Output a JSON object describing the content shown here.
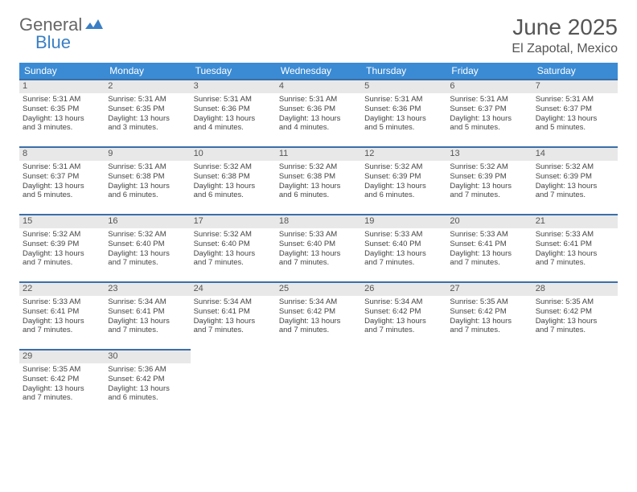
{
  "logo": {
    "general": "General",
    "blue": "Blue"
  },
  "title": {
    "month": "June 2025",
    "location": "El Zapotal, Mexico"
  },
  "day_headers": [
    "Sunday",
    "Monday",
    "Tuesday",
    "Wednesday",
    "Thursday",
    "Friday",
    "Saturday"
  ],
  "colors": {
    "header_bg": "#3b8bd4",
    "border": "#3b6fa8",
    "daynum_bg": "#e8e8e8",
    "text": "#444444"
  },
  "weeks": [
    [
      {
        "n": "1",
        "sr": "Sunrise: 5:31 AM",
        "ss": "Sunset: 6:35 PM",
        "d1": "Daylight: 13 hours",
        "d2": "and 3 minutes."
      },
      {
        "n": "2",
        "sr": "Sunrise: 5:31 AM",
        "ss": "Sunset: 6:35 PM",
        "d1": "Daylight: 13 hours",
        "d2": "and 3 minutes."
      },
      {
        "n": "3",
        "sr": "Sunrise: 5:31 AM",
        "ss": "Sunset: 6:36 PM",
        "d1": "Daylight: 13 hours",
        "d2": "and 4 minutes."
      },
      {
        "n": "4",
        "sr": "Sunrise: 5:31 AM",
        "ss": "Sunset: 6:36 PM",
        "d1": "Daylight: 13 hours",
        "d2": "and 4 minutes."
      },
      {
        "n": "5",
        "sr": "Sunrise: 5:31 AM",
        "ss": "Sunset: 6:36 PM",
        "d1": "Daylight: 13 hours",
        "d2": "and 5 minutes."
      },
      {
        "n": "6",
        "sr": "Sunrise: 5:31 AM",
        "ss": "Sunset: 6:37 PM",
        "d1": "Daylight: 13 hours",
        "d2": "and 5 minutes."
      },
      {
        "n": "7",
        "sr": "Sunrise: 5:31 AM",
        "ss": "Sunset: 6:37 PM",
        "d1": "Daylight: 13 hours",
        "d2": "and 5 minutes."
      }
    ],
    [
      {
        "n": "8",
        "sr": "Sunrise: 5:31 AM",
        "ss": "Sunset: 6:37 PM",
        "d1": "Daylight: 13 hours",
        "d2": "and 5 minutes."
      },
      {
        "n": "9",
        "sr": "Sunrise: 5:31 AM",
        "ss": "Sunset: 6:38 PM",
        "d1": "Daylight: 13 hours",
        "d2": "and 6 minutes."
      },
      {
        "n": "10",
        "sr": "Sunrise: 5:32 AM",
        "ss": "Sunset: 6:38 PM",
        "d1": "Daylight: 13 hours",
        "d2": "and 6 minutes."
      },
      {
        "n": "11",
        "sr": "Sunrise: 5:32 AM",
        "ss": "Sunset: 6:38 PM",
        "d1": "Daylight: 13 hours",
        "d2": "and 6 minutes."
      },
      {
        "n": "12",
        "sr": "Sunrise: 5:32 AM",
        "ss": "Sunset: 6:39 PM",
        "d1": "Daylight: 13 hours",
        "d2": "and 6 minutes."
      },
      {
        "n": "13",
        "sr": "Sunrise: 5:32 AM",
        "ss": "Sunset: 6:39 PM",
        "d1": "Daylight: 13 hours",
        "d2": "and 7 minutes."
      },
      {
        "n": "14",
        "sr": "Sunrise: 5:32 AM",
        "ss": "Sunset: 6:39 PM",
        "d1": "Daylight: 13 hours",
        "d2": "and 7 minutes."
      }
    ],
    [
      {
        "n": "15",
        "sr": "Sunrise: 5:32 AM",
        "ss": "Sunset: 6:39 PM",
        "d1": "Daylight: 13 hours",
        "d2": "and 7 minutes."
      },
      {
        "n": "16",
        "sr": "Sunrise: 5:32 AM",
        "ss": "Sunset: 6:40 PM",
        "d1": "Daylight: 13 hours",
        "d2": "and 7 minutes."
      },
      {
        "n": "17",
        "sr": "Sunrise: 5:32 AM",
        "ss": "Sunset: 6:40 PM",
        "d1": "Daylight: 13 hours",
        "d2": "and 7 minutes."
      },
      {
        "n": "18",
        "sr": "Sunrise: 5:33 AM",
        "ss": "Sunset: 6:40 PM",
        "d1": "Daylight: 13 hours",
        "d2": "and 7 minutes."
      },
      {
        "n": "19",
        "sr": "Sunrise: 5:33 AM",
        "ss": "Sunset: 6:40 PM",
        "d1": "Daylight: 13 hours",
        "d2": "and 7 minutes."
      },
      {
        "n": "20",
        "sr": "Sunrise: 5:33 AM",
        "ss": "Sunset: 6:41 PM",
        "d1": "Daylight: 13 hours",
        "d2": "and 7 minutes."
      },
      {
        "n": "21",
        "sr": "Sunrise: 5:33 AM",
        "ss": "Sunset: 6:41 PM",
        "d1": "Daylight: 13 hours",
        "d2": "and 7 minutes."
      }
    ],
    [
      {
        "n": "22",
        "sr": "Sunrise: 5:33 AM",
        "ss": "Sunset: 6:41 PM",
        "d1": "Daylight: 13 hours",
        "d2": "and 7 minutes."
      },
      {
        "n": "23",
        "sr": "Sunrise: 5:34 AM",
        "ss": "Sunset: 6:41 PM",
        "d1": "Daylight: 13 hours",
        "d2": "and 7 minutes."
      },
      {
        "n": "24",
        "sr": "Sunrise: 5:34 AM",
        "ss": "Sunset: 6:41 PM",
        "d1": "Daylight: 13 hours",
        "d2": "and 7 minutes."
      },
      {
        "n": "25",
        "sr": "Sunrise: 5:34 AM",
        "ss": "Sunset: 6:42 PM",
        "d1": "Daylight: 13 hours",
        "d2": "and 7 minutes."
      },
      {
        "n": "26",
        "sr": "Sunrise: 5:34 AM",
        "ss": "Sunset: 6:42 PM",
        "d1": "Daylight: 13 hours",
        "d2": "and 7 minutes."
      },
      {
        "n": "27",
        "sr": "Sunrise: 5:35 AM",
        "ss": "Sunset: 6:42 PM",
        "d1": "Daylight: 13 hours",
        "d2": "and 7 minutes."
      },
      {
        "n": "28",
        "sr": "Sunrise: 5:35 AM",
        "ss": "Sunset: 6:42 PM",
        "d1": "Daylight: 13 hours",
        "d2": "and 7 minutes."
      }
    ],
    [
      {
        "n": "29",
        "sr": "Sunrise: 5:35 AM",
        "ss": "Sunset: 6:42 PM",
        "d1": "Daylight: 13 hours",
        "d2": "and 7 minutes."
      },
      {
        "n": "30",
        "sr": "Sunrise: 5:36 AM",
        "ss": "Sunset: 6:42 PM",
        "d1": "Daylight: 13 hours",
        "d2": "and 6 minutes."
      },
      null,
      null,
      null,
      null,
      null
    ]
  ]
}
